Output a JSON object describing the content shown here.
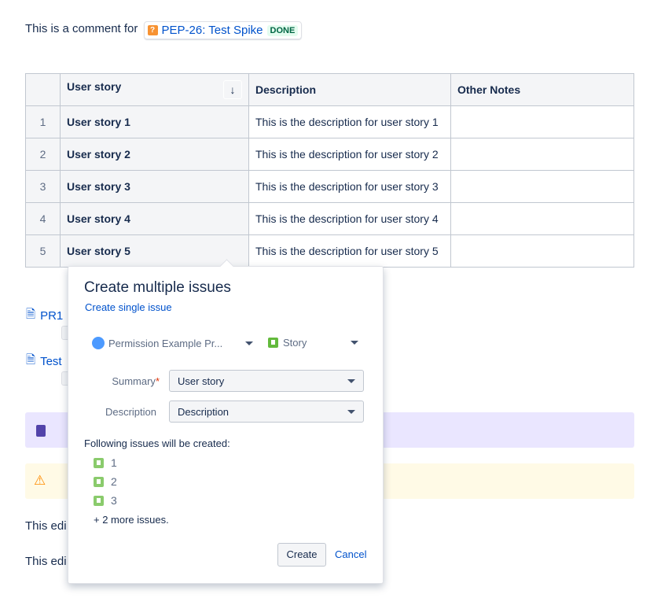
{
  "intro": {
    "text": "This is a comment for",
    "issue_link": "PEP-26: Test Spike",
    "status": "DONE"
  },
  "table": {
    "headers": [
      "",
      "User story",
      "Description",
      "Other Notes"
    ],
    "rows": [
      {
        "n": "1",
        "story": "User story 1",
        "desc": "This is the description for user story 1",
        "notes": ""
      },
      {
        "n": "2",
        "story": "User story 2",
        "desc": "This is the description for user story 2",
        "notes": ""
      },
      {
        "n": "3",
        "story": "User story 3",
        "desc": "This is the description for user story 3",
        "notes": ""
      },
      {
        "n": "4",
        "story": "User story 4",
        "desc": "This is the description for user story 4",
        "notes": ""
      },
      {
        "n": "5",
        "story": "User story 5",
        "desc": "This is the description for user story 5",
        "notes": ""
      }
    ]
  },
  "pages": [
    "PR1",
    "Test"
  ],
  "paragraphs": [
    "This edi",
    "This edi"
  ],
  "popup": {
    "title": "Create multiple issues",
    "single_link": "Create single issue",
    "project": "Permission Example Pr...",
    "issue_type": "Story",
    "summary_label": "Summary",
    "required": "*",
    "summary_value": "User story",
    "desc_label": "Description",
    "desc_value": "Description",
    "following": "Following issues will be created:",
    "items": [
      "1",
      "2",
      "3"
    ],
    "more": "+ 2 more issues.",
    "create": "Create",
    "cancel": "Cancel"
  },
  "colors": {
    "accent": "#0052cc",
    "note_panel": "#eae6ff",
    "warning_panel": "#fffae6"
  }
}
